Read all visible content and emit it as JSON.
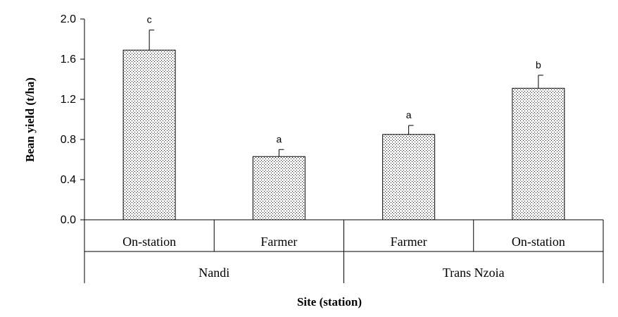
{
  "chart_data": {
    "type": "bar",
    "categories": [
      "On-station",
      "Farmer",
      "Farmer",
      "On-station"
    ],
    "groups": [
      {
        "label": "Nandi",
        "categories": [
          "On-station",
          "Farmer"
        ]
      },
      {
        "label": "Trans Nzoia",
        "categories": [
          "Farmer",
          "On-station"
        ]
      }
    ],
    "values": [
      1.69,
      0.63,
      0.85,
      1.31
    ],
    "error_bars": [
      0.2,
      0.07,
      0.09,
      0.13
    ],
    "significance_letters": [
      "c",
      "a",
      "a",
      "b"
    ],
    "xlabel": "Site (station)",
    "ylabel": "Bean yield (t/ha)",
    "ylim": [
      0,
      2.0
    ],
    "yticks": [
      "0.0",
      "0.4",
      "0.8",
      "1.2",
      "1.6",
      "2.0"
    ],
    "bar_fill": "dotted",
    "grid": false,
    "colors": {
      "bar_fill": "#ffffff",
      "bar_dots": "#000000",
      "axis": "#000000"
    }
  }
}
